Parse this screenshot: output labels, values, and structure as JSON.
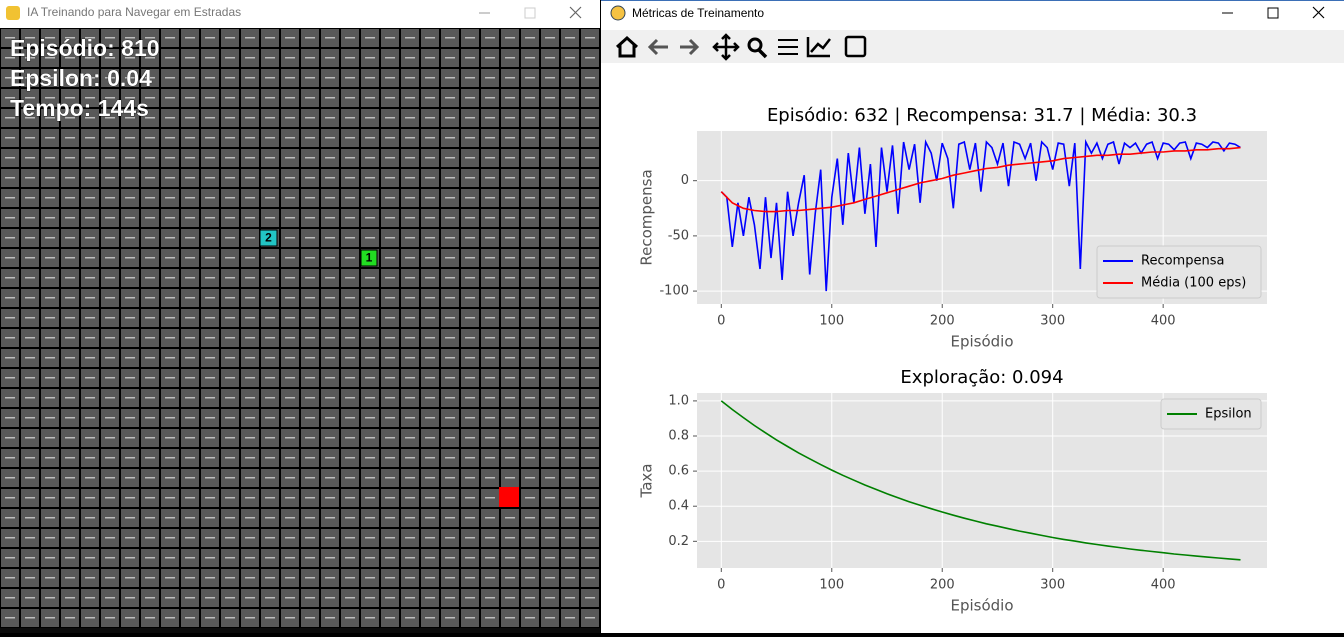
{
  "left_window": {
    "title": "IA Treinando para Navegar em Estradas",
    "hud": [
      "Episódio: 810",
      "Epsilon: 0.04",
      "Tempo: 144s"
    ],
    "agents": [
      "2",
      "1"
    ]
  },
  "right_window": {
    "title": "Métricas de Treinamento"
  },
  "chart_data": [
    {
      "type": "line",
      "title": "Episódio: 632 | Recompensa: 31.7 | Média: 30.3",
      "xlabel": "Episódio",
      "ylabel": "Recompensa",
      "xlim": [
        -22,
        494
      ],
      "ylim": [
        -111.7,
        45
      ],
      "xticks": [
        0,
        100,
        200,
        300,
        400
      ],
      "yticks": [
        -100,
        -50,
        0
      ],
      "grid": true,
      "legend": "lower right",
      "series": [
        {
          "name": "Recompensa",
          "color": "#0000ff",
          "x": [
            0,
            5,
            10,
            15,
            20,
            25,
            30,
            35,
            40,
            45,
            50,
            55,
            60,
            65,
            70,
            75,
            80,
            85,
            90,
            95,
            100,
            105,
            110,
            115,
            120,
            125,
            130,
            135,
            140,
            145,
            150,
            155,
            160,
            165,
            170,
            175,
            180,
            185,
            190,
            195,
            200,
            205,
            210,
            215,
            220,
            225,
            230,
            235,
            240,
            245,
            250,
            255,
            260,
            265,
            270,
            275,
            280,
            285,
            290,
            295,
            300,
            305,
            310,
            315,
            320,
            325,
            330,
            335,
            340,
            345,
            350,
            355,
            360,
            365,
            370,
            375,
            380,
            385,
            390,
            395,
            400,
            405,
            410,
            415,
            420,
            425,
            430,
            435,
            440,
            445,
            450,
            455,
            460,
            465,
            470
          ],
          "values": [
            -10,
            -15,
            -60,
            -20,
            -50,
            -15,
            -40,
            -80,
            -15,
            -70,
            -20,
            -90,
            -10,
            -50,
            -20,
            5,
            -85,
            -30,
            10,
            -100,
            -15,
            20,
            -40,
            25,
            -20,
            30,
            -30,
            15,
            -60,
            30,
            -10,
            32,
            -30,
            35,
            10,
            33,
            -20,
            35,
            25,
            0,
            34,
            20,
            -25,
            33,
            35,
            10,
            34,
            -10,
            35,
            30,
            15,
            34,
            -5,
            35,
            33,
            20,
            34,
            0,
            35,
            30,
            10,
            34,
            33,
            -5,
            34,
            -80,
            35,
            25,
            34,
            20,
            33,
            35,
            15,
            34,
            30,
            34,
            25,
            33,
            35,
            20,
            34,
            33,
            28,
            34,
            35,
            20,
            34,
            33,
            30,
            35,
            34,
            27,
            34,
            33,
            30
          ]
        },
        {
          "name": "Média (100 eps)",
          "color": "#ff0000",
          "x": [
            0,
            10,
            20,
            30,
            40,
            50,
            60,
            70,
            80,
            90,
            100,
            110,
            120,
            130,
            140,
            150,
            160,
            170,
            180,
            190,
            200,
            210,
            220,
            230,
            240,
            250,
            260,
            270,
            280,
            290,
            300,
            310,
            320,
            330,
            340,
            350,
            360,
            370,
            380,
            390,
            400,
            410,
            420,
            430,
            440,
            450,
            460,
            470
          ],
          "values": [
            -10,
            -20,
            -25,
            -27,
            -28,
            -28,
            -27,
            -27,
            -26,
            -25,
            -24,
            -22,
            -20,
            -17,
            -14,
            -11,
            -8,
            -5,
            -2,
            0,
            2,
            5,
            7,
            9,
            11,
            12,
            14,
            15,
            16,
            17,
            18,
            20,
            21,
            22,
            23,
            23,
            24,
            24,
            25,
            26,
            26,
            27,
            27,
            28,
            28,
            29,
            29,
            30
          ]
        }
      ]
    },
    {
      "type": "line",
      "title": "Exploração: 0.094",
      "xlabel": "Episódio",
      "ylabel": "Taxa",
      "xlim": [
        -22,
        494
      ],
      "ylim": [
        0.048,
        1.045
      ],
      "xticks": [
        0,
        100,
        200,
        300,
        400
      ],
      "yticks": [
        0.2,
        0.4,
        0.6,
        0.8,
        {
          "value": 1,
          "label": "1.0"
        }
      ],
      "grid": true,
      "legend": "upper right",
      "series": [
        {
          "name": "Epsilon",
          "color": "#008000",
          "x": [
            0,
            10,
            20,
            30,
            40,
            50,
            60,
            70,
            80,
            90,
            100,
            110,
            120,
            130,
            140,
            150,
            160,
            170,
            180,
            190,
            200,
            210,
            220,
            230,
            240,
            250,
            260,
            270,
            280,
            290,
            300,
            310,
            320,
            330,
            340,
            350,
            360,
            370,
            380,
            390,
            400,
            410,
            420,
            430,
            440,
            450,
            460,
            470
          ],
          "values": [
            1,
            0.951,
            0.905,
            0.86,
            0.818,
            0.778,
            0.74,
            0.704,
            0.67,
            0.637,
            0.606,
            0.576,
            0.548,
            0.521,
            0.496,
            0.471,
            0.448,
            0.426,
            0.405,
            0.386,
            0.367,
            0.349,
            0.332,
            0.316,
            0.3,
            0.286,
            0.272,
            0.258,
            0.246,
            0.234,
            0.222,
            0.211,
            0.201,
            0.191,
            0.182,
            0.173,
            0.165,
            0.156,
            0.149,
            0.142,
            0.135,
            0.128,
            0.122,
            0.116,
            0.11,
            0.105,
            0.1,
            0.095
          ]
        }
      ]
    }
  ]
}
